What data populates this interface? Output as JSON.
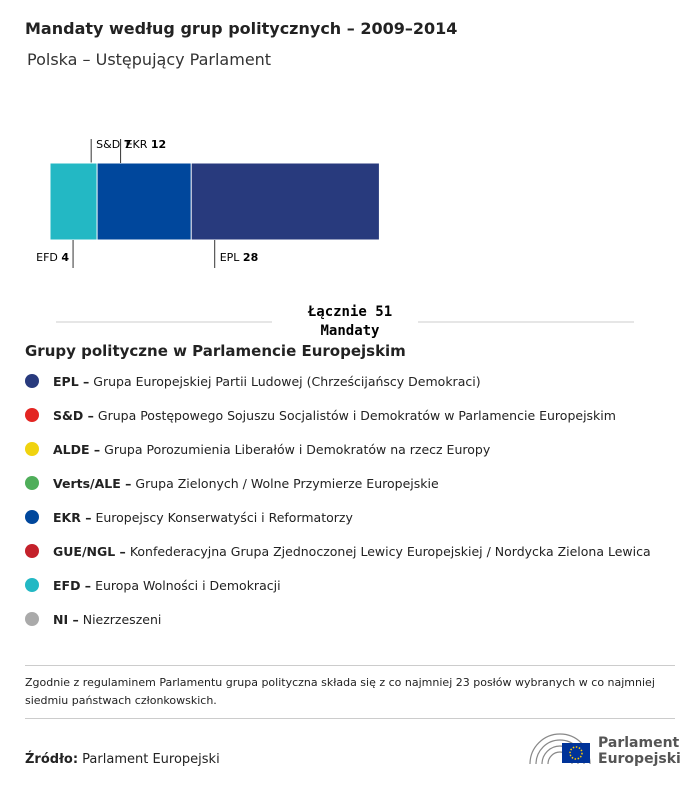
{
  "chart_data": {
    "type": "stacked-bar",
    "title": "Mandaty według grup politycznych – 2009–2014",
    "subtitle": "Polska – Ustępujący Parlament",
    "categories": [
      "S&D",
      "EPL",
      "EKR",
      "EFD"
    ],
    "values": [
      7,
      28,
      12,
      4
    ],
    "colors": [
      "#e32522",
      "#283a7d",
      "#00479c",
      "#23b8c4"
    ],
    "total_label": "Łącznie",
    "total": 51,
    "total_unit": "Mandaty"
  },
  "legend": {
    "title": "Grupy polityczne w Parlamencie Europejskim",
    "items": [
      {
        "abbr": "EPL –",
        "description": "Grupa Europejskiej Partii Ludowej (Chrześcijańscy Demokraci)",
        "color": "#283a7d"
      },
      {
        "abbr": "S&D –",
        "description": "Grupa Postępowego Sojuszu Socjalistów i Demokratów w Parlamencie Europejskim",
        "color": "#e32522"
      },
      {
        "abbr": "ALDE –",
        "description": "Grupa Porozumienia Liberałów i Demokratów na rzecz Europy",
        "color": "#f0d30f"
      },
      {
        "abbr": "Verts/ALE –",
        "description": "Grupa Zielonych / Wolne Przymierze Europejskie",
        "color": "#4fae5a"
      },
      {
        "abbr": "EKR –",
        "description": "Europejscy Konserwatyści i Reformatorzy",
        "color": "#00479c"
      },
      {
        "abbr": "GUE/NGL –",
        "description": "Konfederacyjna Grupa Zjednoczonej Lewicy Europejskiej / Nordycka Zielona Lewica",
        "color": "#c4212b"
      },
      {
        "abbr": "EFD –",
        "description": "Europa Wolności i Demokracji",
        "color": "#23b8c4"
      },
      {
        "abbr": "NI –",
        "description": "Niezrzeszeni",
        "color": "#aaaaaa"
      }
    ]
  },
  "footnote": "Zgodnie z regulaminem Parlamentu grupa polityczna składa się z co najmniej 23 posłów wybranych w co najmniej siedmiu państwach członkowskich.",
  "source": {
    "label": "Źródło:",
    "text": "Parlament Europejski"
  },
  "logo": {
    "line1": "Parlament",
    "line2": "Europejski"
  }
}
